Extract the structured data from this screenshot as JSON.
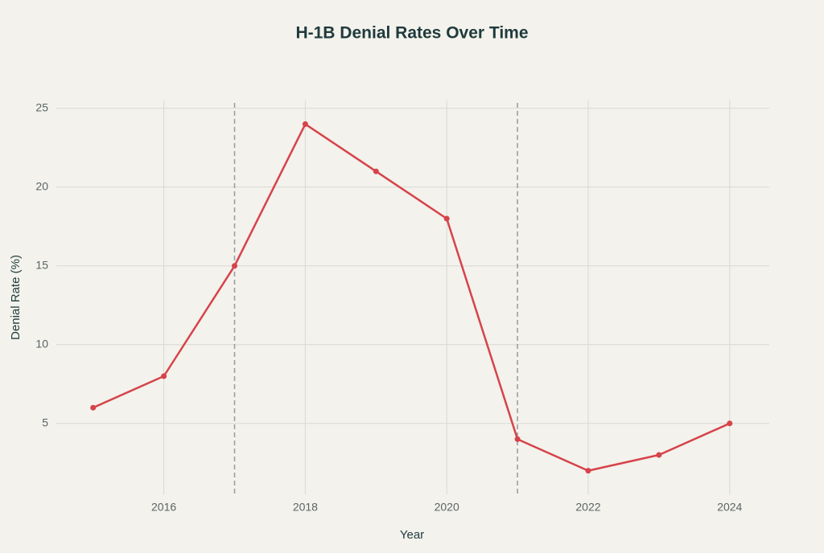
{
  "chart_data": {
    "type": "line",
    "title": "H-1B Denial Rates Over Time",
    "x_label": "Year",
    "y_label": "Denial Rate (%)",
    "x": [
      2015,
      2016,
      2017,
      2018,
      2019,
      2020,
      2021,
      2022,
      2023,
      2024
    ],
    "values": [
      6,
      8,
      15,
      24,
      21,
      18,
      4,
      2,
      3,
      5
    ],
    "color": "#d6434a",
    "xlim": [
      2014.48,
      2024.56
    ],
    "xticks": [
      2016,
      2018,
      2020,
      2022,
      2024
    ],
    "ylim": [
      0.5,
      25.5
    ],
    "yticks": [
      5,
      10,
      15,
      20,
      25
    ],
    "grid": true,
    "vlines": [
      2017,
      2021
    ],
    "vline_color": "#999999"
  }
}
